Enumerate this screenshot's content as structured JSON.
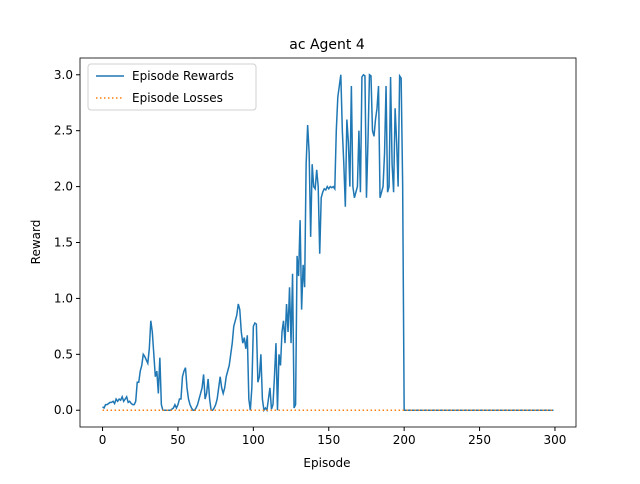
{
  "chart_data": {
    "type": "line",
    "title": "ac Agent 4",
    "xlabel": "Episode",
    "ylabel": "Reward",
    "xlim": [
      -14.95,
      313.95
    ],
    "ylim": [
      -0.15,
      3.15
    ],
    "xticks": [
      0,
      50,
      100,
      150,
      200,
      250,
      300
    ],
    "yticks": [
      {
        "value": 0,
        "label": "0.0"
      },
      0.5,
      {
        "value": 1,
        "label": "1.0"
      },
      1.5,
      {
        "value": 2,
        "label": "2.0"
      },
      2.5,
      {
        "value": 3,
        "label": "3.0"
      }
    ],
    "legend": "upper left",
    "series": [
      {
        "name": "Episode Rewards",
        "color": "#1f77b4",
        "style": "solid",
        "values": [
          0.03,
          0.02,
          0.05,
          0.05,
          0.06,
          0.07,
          0.07,
          0.08,
          0.06,
          0.1,
          0.08,
          0.1,
          0.09,
          0.12,
          0.08,
          0.1,
          0.12,
          0.07,
          0.08,
          0.06,
          0.05,
          0.05,
          0.08,
          0.25,
          0.25,
          0.35,
          0.4,
          0.5,
          0.48,
          0.45,
          0.42,
          0.55,
          0.8,
          0.7,
          0.5,
          0.3,
          0.35,
          0.15,
          0.47,
          0.05,
          0,
          0,
          0,
          0,
          0,
          0,
          0.01,
          0.02,
          0.05,
          0.02,
          0.05,
          0.1,
          0.1,
          0.3,
          0.35,
          0.38,
          0.2,
          0.1,
          0.05,
          0.02,
          0,
          0,
          0.02,
          0.05,
          0.1,
          0.15,
          0.2,
          0.32,
          0.1,
          0.15,
          0.28,
          0.1,
          0,
          0,
          0.02,
          0.05,
          0.1,
          0.2,
          0.3,
          0.2,
          0.15,
          0.2,
          0.3,
          0.35,
          0.4,
          0.5,
          0.6,
          0.75,
          0.8,
          0.85,
          0.95,
          0.9,
          0.7,
          0.6,
          0.65,
          0.55,
          0.67,
          0.1,
          0,
          0.2,
          0.75,
          0.78,
          0.77,
          0.25,
          0.3,
          0.5,
          0.1,
          0,
          0.02,
          0,
          0.1,
          0.2,
          0.01,
          0.05,
          0.3,
          0.6,
          0,
          0.5,
          0.4,
          0.7,
          0.8,
          0.6,
          0.95,
          0.7,
          1.1,
          0.6,
          1.22,
          0.02,
          0.05,
          1.38,
          1.2,
          1.7,
          0.9,
          1.3,
          1.1,
          2.2,
          2.55,
          2.3,
          1.55,
          2.2,
          2.0,
          1.98,
          2.15,
          2.0,
          1.4,
          1.9,
          1.95,
          1.98,
          1.97,
          2.0,
          1.98,
          2.0,
          1.99,
          2.0,
          1.98,
          2.5,
          2.8,
          2.9,
          3.0,
          2.5,
          2.2,
          1.82,
          2.6,
          2.4,
          2.0,
          2.9,
          2.0,
          1.9,
          1.95,
          2.0,
          2.5,
          1.95,
          2.98,
          3.0,
          2.99,
          1.9,
          2.4,
          3.0,
          2.99,
          2.5,
          2.45,
          2.6,
          2.7,
          2.9,
          1.9,
          1.95,
          2.0,
          2.3,
          2.9,
          1.95,
          2.0,
          2.98,
          2.2,
          1.95,
          2.7,
          2.4,
          2.0,
          2.99,
          2.97,
          2.02,
          0,
          0,
          0,
          0,
          0,
          0,
          0,
          0,
          0,
          0,
          0,
          0,
          0,
          0,
          0,
          0,
          0,
          0,
          0,
          0,
          0,
          0,
          0,
          0,
          0,
          0,
          0,
          0,
          0,
          0,
          0,
          0,
          0,
          0,
          0,
          0,
          0,
          0,
          0,
          0,
          0,
          0,
          0,
          0,
          0,
          0,
          0,
          0,
          0,
          0,
          0,
          0,
          0,
          0,
          0,
          0,
          0,
          0,
          0,
          0,
          0,
          0,
          0,
          0,
          0,
          0,
          0,
          0,
          0,
          0,
          0,
          0,
          0,
          0,
          0,
          0,
          0,
          0,
          0,
          0,
          0,
          0,
          0,
          0,
          0,
          0,
          0,
          0,
          0,
          0,
          0,
          0,
          0,
          0,
          0,
          0,
          0,
          0,
          0,
          0
        ]
      },
      {
        "name": "Episode Losses",
        "color": "#ff7f0e",
        "style": "dotted",
        "values": [
          0,
          0,
          0,
          0,
          0,
          0,
          0,
          0,
          0,
          0,
          0,
          0,
          0,
          0,
          0,
          0,
          0,
          0,
          0,
          0,
          0,
          0,
          0,
          0,
          0,
          0,
          0,
          0,
          0,
          0,
          0,
          0,
          0,
          0,
          0,
          0,
          0,
          0,
          0,
          0,
          0,
          0,
          0,
          0,
          0,
          0,
          0,
          0,
          0,
          0,
          0,
          0,
          0,
          0,
          0,
          0,
          0,
          0,
          0,
          0,
          0,
          0,
          0,
          0,
          0,
          0,
          0,
          0,
          0,
          0,
          0,
          0,
          0,
          0,
          0,
          0,
          0,
          0,
          0,
          0,
          0,
          0,
          0,
          0,
          0,
          0,
          0,
          0,
          0,
          0,
          0,
          0,
          0,
          0,
          0,
          0,
          0,
          0,
          0,
          0,
          0,
          0,
          0,
          0,
          0,
          0,
          0,
          0,
          0,
          0,
          0,
          0,
          0,
          0,
          0,
          0,
          0,
          0,
          0,
          0,
          0,
          0,
          0,
          0,
          0,
          0,
          0,
          0,
          0,
          0,
          0,
          0,
          0,
          0,
          0,
          0,
          0,
          0,
          0,
          0,
          0,
          0,
          0,
          0,
          0,
          0,
          0,
          0,
          0,
          0,
          0,
          0,
          0,
          0,
          0,
          0,
          0,
          0,
          0,
          0,
          0,
          0,
          0,
          0,
          0,
          0,
          0,
          0,
          0,
          0,
          0,
          0,
          0,
          0,
          0,
          0,
          0,
          0,
          0,
          0,
          0,
          0,
          0,
          0,
          0,
          0,
          0,
          0,
          0,
          0,
          0,
          0,
          0,
          0,
          0,
          0,
          0,
          0,
          0,
          0,
          0,
          0,
          0,
          0,
          0,
          0,
          0,
          0,
          0,
          0,
          0,
          0,
          0,
          0,
          0,
          0,
          0,
          0,
          0,
          0,
          0,
          0,
          0,
          0,
          0,
          0,
          0,
          0,
          0,
          0,
          0,
          0,
          0,
          0,
          0,
          0,
          0,
          0,
          0,
          0,
          0,
          0,
          0,
          0,
          0,
          0,
          0,
          0,
          0,
          0,
          0,
          0,
          0,
          0,
          0,
          0,
          0,
          0,
          0,
          0,
          0,
          0,
          0,
          0,
          0,
          0,
          0,
          0,
          0,
          0,
          0,
          0,
          0,
          0,
          0,
          0,
          0,
          0,
          0,
          0,
          0,
          0,
          0,
          0,
          0,
          0,
          0,
          0,
          0,
          0,
          0,
          0,
          0,
          0,
          0,
          0,
          0,
          0,
          0,
          0
        ]
      }
    ]
  }
}
